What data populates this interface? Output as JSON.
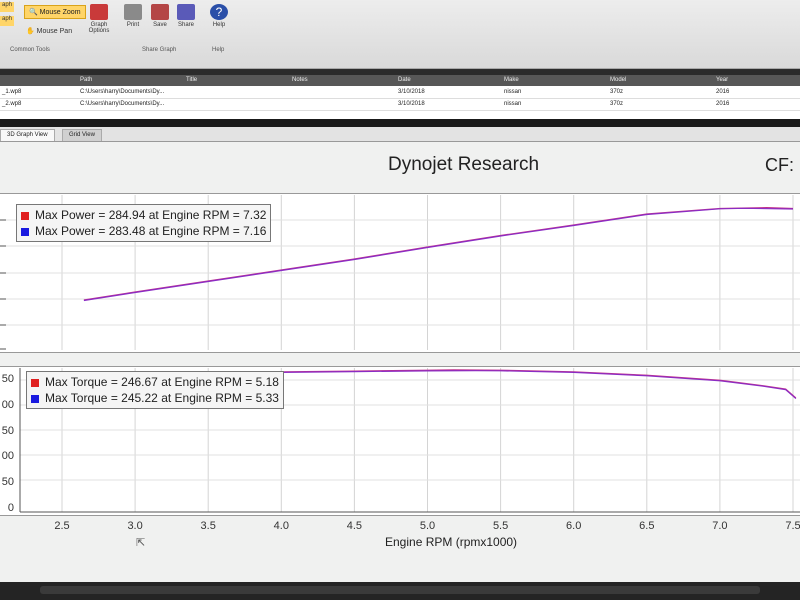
{
  "ribbon": {
    "mouse_zoom": "Mouse Zoom",
    "mouse_pan": "Mouse Pan",
    "graph_options": "Graph Options",
    "print": "Print",
    "save": "Save",
    "share": "Share",
    "help": "Help",
    "group_common_tools": "Common Tools",
    "group_share_graph": "Share Graph",
    "group_help": "Help",
    "left_fragment_1": "aph",
    "left_fragment_2": "aph"
  },
  "file_table": {
    "headers": [
      "Path",
      "Title",
      "Notes",
      "Date",
      "Make",
      "Model",
      "Year"
    ],
    "rows": [
      {
        "name": "_1.wp8",
        "path": "C:\\Users\\harry\\Documents\\Dy...",
        "title": "",
        "notes": "",
        "date": "3/10/2018",
        "make": "nissan",
        "model": "370z",
        "year": "2016"
      },
      {
        "name": "_2.wp8",
        "path": "C:\\Users\\harry\\Documents\\Dy...",
        "title": "",
        "notes": "",
        "date": "3/10/2018",
        "make": "nissan",
        "model": "370z",
        "year": "2016"
      }
    ]
  },
  "tabs": [
    "3D Graph View",
    "Grid View"
  ],
  "chart": {
    "title": "Dynojet Research",
    "cf_label": "CF:",
    "x_label": "Engine RPM (rpmx1000)",
    "x_ticks": [
      "2.5",
      "3.0",
      "3.5",
      "4.0",
      "4.5",
      "5.0",
      "5.5",
      "6.0",
      "6.5",
      "7.0",
      "7.5"
    ],
    "torque_y_ticks": [
      "0",
      "50",
      "00",
      "50",
      "00",
      "50"
    ],
    "colors": {
      "run1": "#e02020",
      "run2": "#1a1ae0",
      "trace": "#b02cc4"
    }
  },
  "chart_data": [
    {
      "type": "line",
      "title": "",
      "xlabel": "",
      "ylabel": "",
      "legend": [
        {
          "label": "Max Power = 284.94 at Engine RPM = 7.32",
          "color": "#e02020"
        },
        {
          "label": "Max Power = 283.48 at Engine RPM = 7.16",
          "color": "#1a1ae0"
        }
      ],
      "series": [
        {
          "x": [
            2.65,
            3.0,
            3.5,
            4.0,
            4.5,
            5.0,
            5.5,
            6.0,
            6.5,
            7.0,
            7.32,
            7.5
          ],
          "y": [
            100,
            116,
            138,
            160,
            182,
            206,
            229,
            250,
            272,
            283,
            284.9,
            283
          ]
        },
        {
          "x": [
            2.65,
            3.0,
            3.5,
            4.0,
            4.5,
            5.0,
            5.5,
            6.0,
            6.5,
            7.0,
            7.16,
            7.5
          ],
          "y": [
            99,
            115,
            137,
            159,
            181,
            205,
            228,
            249,
            271,
            282.5,
            283.5,
            282
          ]
        }
      ],
      "xlim": [
        2.3,
        7.55
      ],
      "ylim": [
        0,
        310
      ]
    },
    {
      "type": "line",
      "title": "",
      "xlabel": "Engine RPM (rpmx1000)",
      "ylabel": "",
      "legend": [
        {
          "label": "Max Torque = 246.67 at Engine RPM = 5.18",
          "color": "#e02020"
        },
        {
          "label": "Max Torque = 245.22 at Engine RPM = 5.33",
          "color": "#1a1ae0"
        }
      ],
      "series": [
        {
          "x": [
            3.6,
            4.0,
            4.5,
            5.0,
            5.18,
            5.5,
            6.0,
            6.5,
            7.0,
            7.3,
            7.45,
            7.52
          ],
          "y": [
            242,
            243,
            244.5,
            246,
            246.7,
            246,
            243,
            237,
            228,
            218,
            212,
            196
          ]
        },
        {
          "x": [
            3.6,
            4.0,
            4.5,
            5.0,
            5.33,
            5.5,
            6.0,
            6.5,
            7.0,
            7.3,
            7.45,
            7.52
          ],
          "y": [
            241,
            242,
            243.5,
            244.8,
            245.2,
            244.9,
            242,
            236,
            227,
            217,
            211,
            195
          ]
        }
      ],
      "xlim": [
        2.3,
        7.55
      ],
      "ylim": [
        0,
        250
      ]
    }
  ]
}
